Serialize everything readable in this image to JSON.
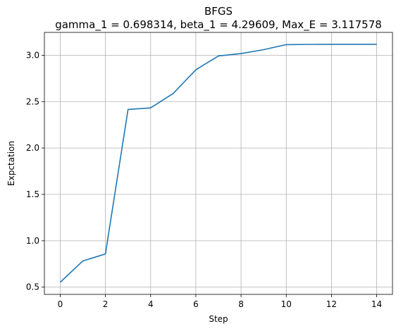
{
  "chart_data": {
    "type": "line",
    "title": "BFGS",
    "subtitle": "gamma_1 = 0.698314, beta_1 = 4.29609, Max_E = 3.117578",
    "xlabel": "Step",
    "ylabel": "Expctation",
    "xlim": [
      -0.7,
      14.7
    ],
    "ylim": [
      0.422,
      3.246
    ],
    "xticks": [
      0,
      2,
      4,
      6,
      8,
      10,
      12,
      14
    ],
    "yticks": [
      0.5,
      1.0,
      1.5,
      2.0,
      2.5,
      3.0
    ],
    "xtick_labels": [
      "0",
      "2",
      "4",
      "6",
      "8",
      "10",
      "12",
      "14"
    ],
    "ytick_labels": [
      "0.5",
      "1.0",
      "1.5",
      "2.0",
      "2.5",
      "3.0"
    ],
    "grid": true,
    "series": [
      {
        "color": "#1f77b4",
        "x": [
          0,
          1,
          2,
          3,
          4,
          5,
          6,
          7,
          8,
          9,
          10,
          11,
          12,
          13,
          14
        ],
        "values": [
          0.553,
          0.782,
          0.858,
          2.415,
          2.432,
          2.588,
          2.843,
          2.992,
          3.018,
          3.06,
          3.114,
          3.117,
          3.1176,
          3.1176,
          3.1176
        ]
      }
    ]
  }
}
